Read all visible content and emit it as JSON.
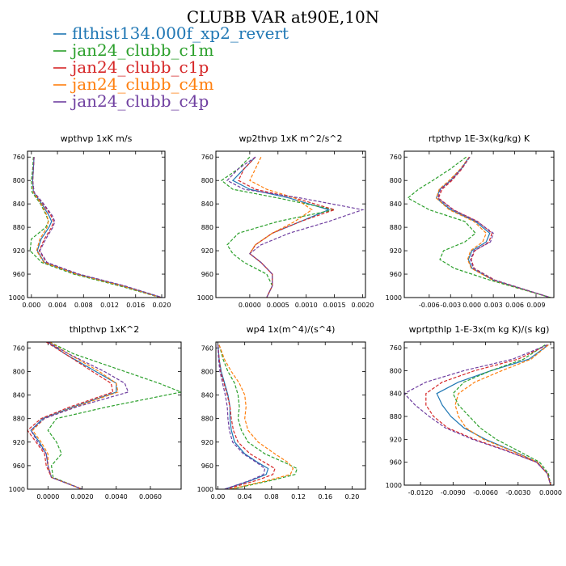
{
  "figure_title": "CLUBB VAR at90E,10N",
  "legend": [
    {
      "label": "flthist134.000f_xp2_revert",
      "color": "#1f77b4"
    },
    {
      "label": "jan24_clubb_c1m",
      "color": "#2ca02c"
    },
    {
      "label": "jan24_clubb_c1p",
      "color": "#d62728"
    },
    {
      "label": "jan24_clubb_c4m",
      "color": "#ff7f0e"
    },
    {
      "label": "jan24_clubb_c4p",
      "color": "#6f3fa0"
    }
  ],
  "chart_data": [
    {
      "type": "line",
      "title": "wpthvp  1xK m/s",
      "ylim": [
        1000,
        750
      ],
      "yticks": [
        "760",
        "800",
        "840",
        "880",
        "920",
        "960",
        "1000"
      ],
      "xlim": [
        -0.0006,
        0.0205
      ],
      "xticks": [
        "0.000",
        "0.004",
        "0.008",
        "0.012",
        "0.016",
        "0.020"
      ],
      "y": [
        760,
        780,
        800,
        820,
        840,
        860,
        870,
        880,
        900,
        920,
        940,
        960,
        980,
        1000
      ],
      "series": [
        {
          "name": "flthist134.000f_xp2_revert",
          "x": [
            0.0004,
            0.0003,
            0.0002,
            0.0003,
            0.0016,
            0.0027,
            0.0031,
            0.0027,
            0.0015,
            0.0009,
            0.002,
            0.007,
            0.014,
            0.02
          ]
        },
        {
          "name": "jan24_clubb_c1m",
          "x": [
            0.0003,
            0.0002,
            0.0,
            0.0001,
            0.0014,
            0.0023,
            0.0026,
            0.0022,
            0.0,
            -0.0002,
            0.0016,
            0.0065,
            0.0135,
            0.0198
          ]
        },
        {
          "name": "jan24_clubb_c1p",
          "x": [
            0.0004,
            0.0003,
            0.0002,
            0.0004,
            0.0018,
            0.003,
            0.0034,
            0.0031,
            0.002,
            0.0012,
            0.0023,
            0.0072,
            0.0142,
            0.02
          ]
        },
        {
          "name": "jan24_clubb_c4m",
          "x": [
            0.0004,
            0.0003,
            0.0002,
            0.0003,
            0.0015,
            0.0024,
            0.0026,
            0.0024,
            0.0013,
            0.0008,
            0.0019,
            0.0069,
            0.0139,
            0.0199
          ]
        },
        {
          "name": "jan24_clubb_c4p",
          "x": [
            0.0004,
            0.0003,
            0.0002,
            0.0004,
            0.0019,
            0.0032,
            0.0036,
            0.0033,
            0.0022,
            0.0013,
            0.0024,
            0.0073,
            0.0143,
            0.0201
          ]
        }
      ]
    },
    {
      "type": "line",
      "title": "wp2thvp  1xK m^2/s^2",
      "ylim": [
        1000,
        750
      ],
      "yticks": [
        "760",
        "800",
        "840",
        "880",
        "920",
        "960",
        "1000"
      ],
      "xlim": [
        -0.0006,
        0.00205
      ],
      "xticks": [
        "0.0000",
        "0.0005",
        "0.0010",
        "0.0015",
        "0.0020"
      ],
      "y": [
        760,
        780,
        800,
        815,
        830,
        850,
        870,
        890,
        910,
        925,
        940,
        960,
        980,
        1000
      ],
      "series": [
        {
          "name": "flthist134.000f_xp2_revert",
          "x": [
            0.0001,
            -0.0001,
            -0.0003,
            0.0,
            0.0007,
            0.0014,
            0.0009,
            0.0004,
            0.0001,
            0.0,
            0.0002,
            0.0004,
            0.0004,
            0.0003
          ]
        },
        {
          "name": "jan24_clubb_c1m",
          "x": [
            0.0,
            -0.0002,
            -0.0005,
            -0.0003,
            0.0005,
            0.0015,
            0.0005,
            -0.0002,
            -0.0004,
            -0.0003,
            -0.0001,
            0.0003,
            0.0004,
            0.0003
          ]
        },
        {
          "name": "jan24_clubb_c1p",
          "x": [
            0.0001,
            -0.0001,
            -0.0002,
            0.0001,
            0.0008,
            0.0015,
            0.0009,
            0.0004,
            0.0001,
            0.0,
            0.0002,
            0.0004,
            0.0004,
            0.0003
          ]
        },
        {
          "name": "jan24_clubb_c4m",
          "x": [
            0.0002,
            0.0001,
            0.0,
            0.0003,
            0.0008,
            0.0011,
            0.0008,
            0.0004,
            0.0001,
            0.0,
            0.0002,
            0.0004,
            0.0004,
            0.0003
          ]
        },
        {
          "name": "jan24_clubb_c4p",
          "x": [
            0.0001,
            -0.0002,
            -0.0004,
            -0.0001,
            0.0009,
            0.002,
            0.0014,
            0.0007,
            0.0002,
            0.0,
            0.0002,
            0.0004,
            0.0004,
            0.0003
          ]
        }
      ]
    },
    {
      "type": "line",
      "title": "rtpthvp  1E-3x(kg/kg) K",
      "ylim": [
        1000,
        750
      ],
      "yticks": [
        "760",
        "800",
        "840",
        "880",
        "920",
        "960",
        "1000"
      ],
      "xlim": [
        -0.0095,
        0.0115
      ],
      "xticks": [
        "-0.006",
        "-0.003",
        "0.000",
        "0.003",
        "0.006",
        "0.009"
      ],
      "y": [
        760,
        780,
        800,
        815,
        830,
        850,
        870,
        890,
        905,
        920,
        935,
        950,
        970,
        1000
      ],
      "series": [
        {
          "name": "flthist134.000f_xp2_revert",
          "x": [
            -0.0004,
            -0.0015,
            -0.003,
            -0.0045,
            -0.005,
            -0.003,
            0.0005,
            0.0025,
            0.002,
            0.0,
            -0.0005,
            0.0,
            0.003,
            0.011
          ]
        },
        {
          "name": "jan24_clubb_c1m",
          "x": [
            -0.0008,
            -0.003,
            -0.0055,
            -0.0075,
            -0.009,
            -0.006,
            -0.001,
            0.0005,
            -0.001,
            -0.004,
            -0.0045,
            -0.0025,
            0.0025,
            0.011
          ]
        },
        {
          "name": "jan24_clubb_c1p",
          "x": [
            -0.0003,
            -0.0014,
            -0.0028,
            -0.0042,
            -0.0047,
            -0.0026,
            0.0008,
            0.0028,
            0.0024,
            0.0004,
            -0.0001,
            0.0003,
            0.0032,
            0.011
          ]
        },
        {
          "name": "jan24_clubb_c4m",
          "x": [
            -0.0004,
            -0.0016,
            -0.0032,
            -0.0046,
            -0.005,
            -0.0032,
            0.0003,
            0.002,
            0.0015,
            -0.0002,
            -0.0006,
            -0.0001,
            0.0029,
            0.011
          ]
        },
        {
          "name": "jan24_clubb_c4p",
          "x": [
            -0.0003,
            -0.0015,
            -0.003,
            -0.0044,
            -0.0048,
            -0.0027,
            0.0007,
            0.003,
            0.0026,
            0.0003,
            -0.0002,
            0.0002,
            0.0031,
            0.011
          ]
        }
      ]
    },
    {
      "type": "line",
      "title": "thlpthvp  1xK^2",
      "ylim": [
        1000,
        750
      ],
      "yticks": [
        "760",
        "800",
        "840",
        "880",
        "920",
        "960",
        "1000"
      ],
      "xlim": [
        -0.0012,
        0.0078
      ],
      "xticks": [
        "0.0000",
        "0.0020",
        "0.0040",
        "0.0060"
      ],
      "y": [
        750,
        770,
        800,
        820,
        835,
        860,
        880,
        900,
        920,
        940,
        960,
        980,
        1000
      ],
      "series": [
        {
          "name": "flthist134.000f_xp2_revert",
          "x": [
            0.0,
            0.001,
            0.0028,
            0.004,
            0.004,
            0.0015,
            -0.0003,
            -0.001,
            -0.0005,
            -0.0001,
            0.0,
            0.0002,
            0.002
          ]
        },
        {
          "name": "jan24_clubb_c1m",
          "x": [
            0.0001,
            0.0015,
            0.0045,
            0.0065,
            0.0078,
            0.0035,
            0.0005,
            0.0,
            0.0005,
            0.0008,
            0.0002,
            0.0003,
            0.002
          ]
        },
        {
          "name": "jan24_clubb_c1p",
          "x": [
            -0.0001,
            0.001,
            0.0026,
            0.0037,
            0.0038,
            0.0013,
            -0.0004,
            -0.0012,
            -0.0007,
            -0.0002,
            -0.0001,
            0.0002,
            0.002
          ]
        },
        {
          "name": "jan24_clubb_c4m",
          "x": [
            0.0001,
            0.0012,
            0.003,
            0.004,
            0.0041,
            0.0016,
            -0.0002,
            -0.0009,
            -0.0004,
            0.0,
            0.0,
            0.0002,
            0.002
          ]
        },
        {
          "name": "jan24_clubb_c4p",
          "x": [
            0.0,
            0.0012,
            0.0033,
            0.0045,
            0.0047,
            0.0017,
            -0.0002,
            -0.001,
            -0.0006,
            -0.0001,
            0.0,
            0.0002,
            0.002
          ]
        }
      ]
    },
    {
      "type": "line",
      "title": "wp4  1x(m^4)/(s^4)",
      "ylim": [
        1000,
        750
      ],
      "yticks": [
        "760",
        "800",
        "840",
        "880",
        "920",
        "960",
        "1000"
      ],
      "xlim": [
        -0.003,
        0.22
      ],
      "xticks": [
        "0.00",
        "0.04",
        "0.08",
        "0.12",
        "0.16",
        "0.20"
      ],
      "y": [
        755,
        780,
        800,
        820,
        840,
        860,
        880,
        900,
        920,
        940,
        955,
        965,
        975,
        985,
        1000
      ],
      "series": [
        {
          "name": "flthist134.000f_xp2_revert",
          "x": [
            0.0,
            0.002,
            0.005,
            0.01,
            0.015,
            0.018,
            0.018,
            0.02,
            0.025,
            0.04,
            0.06,
            0.075,
            0.072,
            0.05,
            0.01
          ]
        },
        {
          "name": "jan24_clubb_c1m",
          "x": [
            0.002,
            0.008,
            0.015,
            0.025,
            0.03,
            0.032,
            0.03,
            0.035,
            0.045,
            0.07,
            0.1,
            0.118,
            0.115,
            0.08,
            0.02
          ]
        },
        {
          "name": "jan24_clubb_c1p",
          "x": [
            0.0,
            0.002,
            0.004,
            0.009,
            0.014,
            0.018,
            0.02,
            0.023,
            0.03,
            0.048,
            0.07,
            0.085,
            0.082,
            0.058,
            0.012
          ]
        },
        {
          "name": "jan24_clubb_c4m",
          "x": [
            0.002,
            0.01,
            0.02,
            0.032,
            0.04,
            0.042,
            0.04,
            0.045,
            0.06,
            0.085,
            0.105,
            0.112,
            0.108,
            0.075,
            0.018
          ]
        },
        {
          "name": "jan24_clubb_c4p",
          "x": [
            0.0,
            0.001,
            0.003,
            0.007,
            0.011,
            0.014,
            0.015,
            0.017,
            0.022,
            0.038,
            0.058,
            0.07,
            0.068,
            0.048,
            0.01
          ]
        }
      ]
    },
    {
      "type": "line",
      "title": "wprtpthlp  1-E-3x(m kg K)/(s kg)",
      "ylim": [
        1000,
        750
      ],
      "yticks": [
        "760",
        "800",
        "840",
        "880",
        "920",
        "960",
        "1000"
      ],
      "xlim": [
        -0.0135,
        0.0003
      ],
      "xticks": [
        "-0.0120",
        "-0.0090",
        "-0.0060",
        "-0.0030",
        "0.0000"
      ],
      "y": [
        755,
        780,
        800,
        820,
        840,
        860,
        880,
        900,
        920,
        940,
        960,
        980,
        1000
      ],
      "series": [
        {
          "name": "flthist134.000f_xp2_revert",
          "x": [
            -0.0002,
            -0.002,
            -0.0055,
            -0.0085,
            -0.0105,
            -0.01,
            -0.0092,
            -0.008,
            -0.006,
            -0.0035,
            -0.0012,
            -0.0003,
            0.0
          ]
        },
        {
          "name": "jan24_clubb_c1m",
          "x": [
            -0.0005,
            -0.0025,
            -0.0055,
            -0.008,
            -0.009,
            -0.0085,
            -0.0075,
            -0.0065,
            -0.005,
            -0.003,
            -0.001,
            -0.0002,
            0.0
          ]
        },
        {
          "name": "jan24_clubb_c1p",
          "x": [
            -0.0003,
            -0.003,
            -0.007,
            -0.01,
            -0.0115,
            -0.0115,
            -0.0108,
            -0.0095,
            -0.007,
            -0.004,
            -0.0013,
            -0.0003,
            0.0
          ]
        },
        {
          "name": "jan24_clubb_c4m",
          "x": [
            -0.0002,
            -0.0018,
            -0.0045,
            -0.007,
            -0.0085,
            -0.0088,
            -0.0085,
            -0.0078,
            -0.0062,
            -0.0036,
            -0.0012,
            -0.0003,
            0.0
          ]
        },
        {
          "name": "jan24_clubb_c4p",
          "x": [
            -0.0003,
            -0.0035,
            -0.008,
            -0.0115,
            -0.0135,
            -0.0125,
            -0.0112,
            -0.0097,
            -0.0072,
            -0.0041,
            -0.0013,
            -0.0003,
            0.0
          ]
        }
      ]
    }
  ]
}
